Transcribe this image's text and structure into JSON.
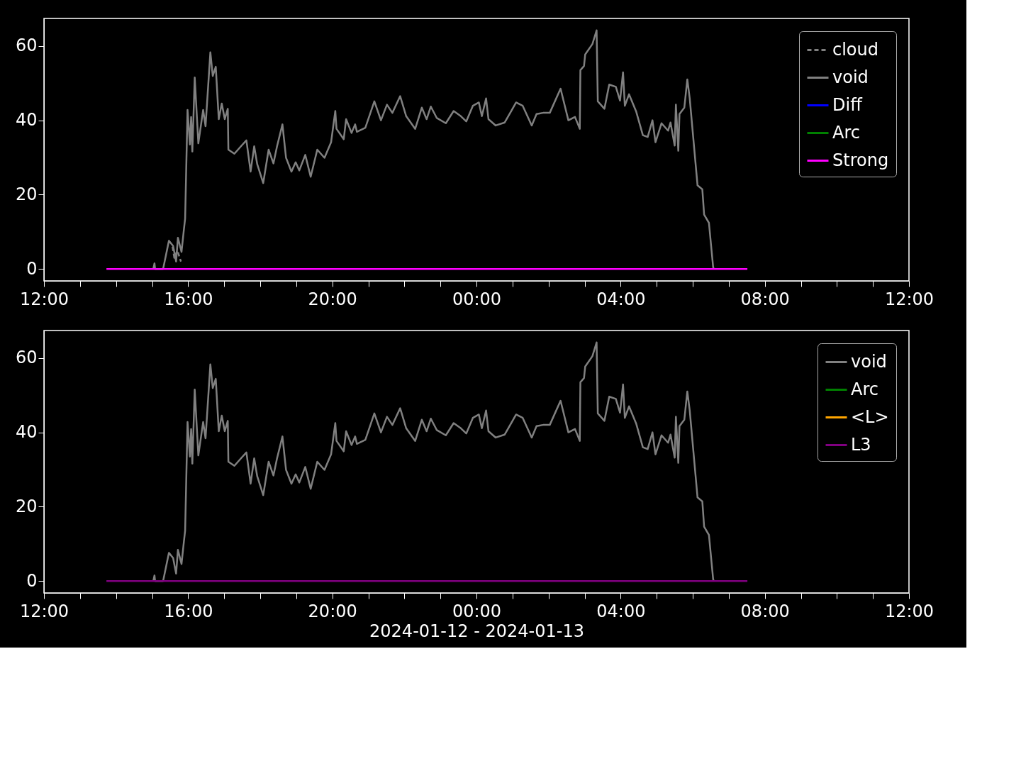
{
  "chart_data": [
    {
      "type": "line",
      "xlim": [
        "2024-01-12T12:00",
        "2024-01-13T12:00"
      ],
      "ylim": [
        -3.2,
        67.4
      ],
      "yticks": [
        0,
        20,
        40,
        60
      ],
      "xticks": [
        {
          "value": "2024-01-12T12:00",
          "label": "12:00"
        },
        {
          "value": "2024-01-12T13:00",
          "label": null
        },
        {
          "value": "2024-01-12T14:00",
          "label": null
        },
        {
          "value": "2024-01-12T15:00",
          "label": null
        },
        {
          "value": "2024-01-12T16:00",
          "label": "16:00"
        },
        {
          "value": "2024-01-12T17:00",
          "label": null
        },
        {
          "value": "2024-01-12T18:00",
          "label": null
        },
        {
          "value": "2024-01-12T19:00",
          "label": null
        },
        {
          "value": "2024-01-12T20:00",
          "label": "20:00"
        },
        {
          "value": "2024-01-12T21:00",
          "label": null
        },
        {
          "value": "2024-01-12T22:00",
          "label": null
        },
        {
          "value": "2024-01-12T23:00",
          "label": null
        },
        {
          "value": "2024-01-13T00:00",
          "label": "00:00"
        },
        {
          "value": "2024-01-13T01:00",
          "label": null
        },
        {
          "value": "2024-01-13T02:00",
          "label": null
        },
        {
          "value": "2024-01-13T03:00",
          "label": null
        },
        {
          "value": "2024-01-13T04:00",
          "label": "04:00"
        },
        {
          "value": "2024-01-13T05:00",
          "label": null
        },
        {
          "value": "2024-01-13T06:00",
          "label": null
        },
        {
          "value": "2024-01-13T07:00",
          "label": null
        },
        {
          "value": "2024-01-13T08:00",
          "label": "08:00"
        },
        {
          "value": "2024-01-13T09:00",
          "label": null
        },
        {
          "value": "2024-01-13T10:00",
          "label": null
        },
        {
          "value": "2024-01-13T11:00",
          "label": null
        },
        {
          "value": "2024-01-13T12:00",
          "label": "12:00"
        }
      ],
      "legend": "top right",
      "grid": false,
      "series": [
        {
          "name": "cloud",
          "color": "#808080",
          "line_style": "dashed",
          "x": [
            "2024-01-12T15:34",
            "2024-01-12T15:37",
            "2024-01-12T15:42",
            "2024-01-12T15:48"
          ],
          "values": [
            6,
            3,
            5,
            2
          ]
        },
        {
          "name": "void",
          "color": "#808080",
          "x": [
            "2024-01-12T15:02",
            "2024-01-12T15:04",
            "2024-01-12T15:05",
            "2024-01-12T15:18",
            "2024-01-12T15:19",
            "2024-01-12T15:28",
            "2024-01-12T15:35",
            "2024-01-12T15:40",
            "2024-01-12T15:43",
            "2024-01-12T15:49",
            "2024-01-12T15:53",
            "2024-01-12T15:55",
            "2024-01-12T15:59",
            "2024-01-12T16:03",
            "2024-01-12T16:05",
            "2024-01-12T16:07",
            "2024-01-12T16:11",
            "2024-01-12T16:17",
            "2024-01-12T16:25",
            "2024-01-12T16:29",
            "2024-01-12T16:37",
            "2024-01-12T16:41",
            "2024-01-12T16:46",
            "2024-01-12T16:51",
            "2024-01-12T16:56",
            "2024-01-12T17:01",
            "2024-01-12T17:06",
            "2024-01-12T17:07",
            "2024-01-12T17:17",
            "2024-01-12T17:29",
            "2024-01-12T17:37",
            "2024-01-12T17:44",
            "2024-01-12T17:50",
            "2024-01-12T17:55",
            "2024-01-12T18:05",
            "2024-01-12T18:14",
            "2024-01-12T18:22",
            "2024-01-12T18:28",
            "2024-01-12T18:37",
            "2024-01-12T18:43",
            "2024-01-12T18:52",
            "2024-01-12T18:59",
            "2024-01-12T19:05",
            "2024-01-12T19:15",
            "2024-01-12T19:24",
            "2024-01-12T19:35",
            "2024-01-12T19:47",
            "2024-01-12T19:58",
            "2024-01-12T20:05",
            "2024-01-12T20:07",
            "2024-01-12T20:19",
            "2024-01-12T20:23",
            "2024-01-12T20:32",
            "2024-01-12T20:38",
            "2024-01-12T20:41",
            "2024-01-12T20:55",
            "2024-01-12T21:10",
            "2024-01-12T21:21",
            "2024-01-12T21:31",
            "2024-01-12T21:40",
            "2024-01-12T21:53",
            "2024-01-12T22:03",
            "2024-01-12T22:18",
            "2024-01-12T22:29",
            "2024-01-12T22:37",
            "2024-01-12T22:44",
            "2024-01-12T22:54",
            "2024-01-12T23:09",
            "2024-01-12T23:22",
            "2024-01-12T23:34",
            "2024-01-12T23:43",
            "2024-01-12T23:54",
            "2024-01-13T00:04",
            "2024-01-13T00:09",
            "2024-01-13T00:16",
            "2024-01-13T00:20",
            "2024-01-13T00:32",
            "2024-01-13T00:47",
            "2024-01-13T00:58",
            "2024-01-13T01:06",
            "2024-01-13T01:17",
            "2024-01-13T01:32",
            "2024-01-13T01:40",
            "2024-01-13T01:51",
            "2024-01-13T02:02",
            "2024-01-13T02:20",
            "2024-01-13T02:33",
            "2024-01-13T02:44",
            "2024-01-13T02:52",
            "2024-01-13T02:53",
            "2024-01-13T02:59",
            "2024-01-13T03:01",
            "2024-01-13T03:13",
            "2024-01-13T03:20",
            "2024-01-13T03:22",
            "2024-01-13T03:33",
            "2024-01-13T03:41",
            "2024-01-13T03:52",
            "2024-01-13T03:59",
            "2024-01-13T04:04",
            "2024-01-13T04:07",
            "2024-01-13T04:14",
            "2024-01-13T04:26",
            "2024-01-13T04:37",
            "2024-01-13T04:45",
            "2024-01-13T04:53",
            "2024-01-13T04:58",
            "2024-01-13T05:08",
            "2024-01-13T05:19",
            "2024-01-13T05:23",
            "2024-01-13T05:30",
            "2024-01-13T05:32",
            "2024-01-13T05:36",
            "2024-01-13T05:38",
            "2024-01-13T05:46",
            "2024-01-13T05:51",
            "2024-01-13T05:55",
            "2024-01-13T06:08",
            "2024-01-13T06:16",
            "2024-01-13T06:19",
            "2024-01-13T06:27",
            "2024-01-13T06:34",
            "2024-01-13T06:35"
          ],
          "values": [
            0,
            1.5,
            0,
            0,
            0.5,
            7.6,
            6.2,
            2,
            8.4,
            4.6,
            10.7,
            13.5,
            42.8,
            33.5,
            40.9,
            31.6,
            51.5,
            33.8,
            42.8,
            38.4,
            58.3,
            51.9,
            54.4,
            40.3,
            44.5,
            40.3,
            43.1,
            32.1,
            31,
            33.2,
            34.6,
            26.2,
            33,
            28.2,
            23.1,
            32.1,
            28.4,
            33,
            38.9,
            29.9,
            26.2,
            28.7,
            26.5,
            30.7,
            24.8,
            32.1,
            29.9,
            34.1,
            42.5,
            37.7,
            34.9,
            40.3,
            36.6,
            38.9,
            36.9,
            38,
            45.1,
            40,
            44.2,
            42,
            46.5,
            41.1,
            37.7,
            43.4,
            40.3,
            43.7,
            40.6,
            39.2,
            42.5,
            41.1,
            39.7,
            43.9,
            44.8,
            41.1,
            45.9,
            40.3,
            38.6,
            39.4,
            42.5,
            44.8,
            43.9,
            38.6,
            41.7,
            42,
            42,
            48.5,
            40,
            40.9,
            37.7,
            53.5,
            54.6,
            57.7,
            60.5,
            64.2,
            45.1,
            43.1,
            49.6,
            49,
            45.3,
            52.9,
            43.9,
            47,
            42.3,
            36,
            35.5,
            40,
            34.1,
            39.2,
            37.2,
            39.4,
            33.2,
            44.2,
            31.8,
            41.7,
            43.4,
            51,
            45.9,
            22.5,
            21.4,
            14.6,
            12.4,
            0.5,
            0
          ]
        },
        {
          "name": "Diff",
          "color": "#0000ff"
        },
        {
          "name": "Arc",
          "color": "#008000"
        },
        {
          "name": "Strong",
          "color": "#ff00ff",
          "x": [
            "2024-01-12T13:44",
            "2024-01-13T07:31"
          ],
          "values": [
            0,
            0
          ]
        }
      ]
    },
    {
      "type": "line",
      "xlim": [
        "2024-01-12T12:00",
        "2024-01-13T12:00"
      ],
      "ylim": [
        -3.2,
        67.4
      ],
      "yticks": [
        0,
        20,
        40,
        60
      ],
      "xlabel": "2024-01-12 - 2024-01-13",
      "xticks": [
        {
          "value": "2024-01-12T12:00",
          "label": "12:00"
        },
        {
          "value": "2024-01-12T13:00",
          "label": null
        },
        {
          "value": "2024-01-12T14:00",
          "label": null
        },
        {
          "value": "2024-01-12T15:00",
          "label": null
        },
        {
          "value": "2024-01-12T16:00",
          "label": "16:00"
        },
        {
          "value": "2024-01-12T17:00",
          "label": null
        },
        {
          "value": "2024-01-12T18:00",
          "label": null
        },
        {
          "value": "2024-01-12T19:00",
          "label": null
        },
        {
          "value": "2024-01-12T20:00",
          "label": "20:00"
        },
        {
          "value": "2024-01-12T21:00",
          "label": null
        },
        {
          "value": "2024-01-12T22:00",
          "label": null
        },
        {
          "value": "2024-01-12T23:00",
          "label": null
        },
        {
          "value": "2024-01-13T00:00",
          "label": "00:00"
        },
        {
          "value": "2024-01-13T01:00",
          "label": null
        },
        {
          "value": "2024-01-13T02:00",
          "label": null
        },
        {
          "value": "2024-01-13T03:00",
          "label": null
        },
        {
          "value": "2024-01-13T04:00",
          "label": "04:00"
        },
        {
          "value": "2024-01-13T05:00",
          "label": null
        },
        {
          "value": "2024-01-13T06:00",
          "label": null
        },
        {
          "value": "2024-01-13T07:00",
          "label": null
        },
        {
          "value": "2024-01-13T08:00",
          "label": "08:00"
        },
        {
          "value": "2024-01-13T09:00",
          "label": null
        },
        {
          "value": "2024-01-13T10:00",
          "label": null
        },
        {
          "value": "2024-01-13T11:00",
          "label": null
        },
        {
          "value": "2024-01-13T12:00",
          "label": "12:00"
        }
      ],
      "legend": "top right",
      "grid": false,
      "series": [
        {
          "name": "void",
          "color": "#808080",
          "x": [
            "2024-01-12T15:02",
            "2024-01-12T15:04",
            "2024-01-12T15:05",
            "2024-01-12T15:18",
            "2024-01-12T15:19",
            "2024-01-12T15:28",
            "2024-01-12T15:35",
            "2024-01-12T15:40",
            "2024-01-12T15:43",
            "2024-01-12T15:49",
            "2024-01-12T15:53",
            "2024-01-12T15:55",
            "2024-01-12T15:59",
            "2024-01-12T16:03",
            "2024-01-12T16:05",
            "2024-01-12T16:07",
            "2024-01-12T16:11",
            "2024-01-12T16:17",
            "2024-01-12T16:25",
            "2024-01-12T16:29",
            "2024-01-12T16:37",
            "2024-01-12T16:41",
            "2024-01-12T16:46",
            "2024-01-12T16:51",
            "2024-01-12T16:56",
            "2024-01-12T17:01",
            "2024-01-12T17:06",
            "2024-01-12T17:07",
            "2024-01-12T17:17",
            "2024-01-12T17:29",
            "2024-01-12T17:37",
            "2024-01-12T17:44",
            "2024-01-12T17:50",
            "2024-01-12T17:55",
            "2024-01-12T18:05",
            "2024-01-12T18:14",
            "2024-01-12T18:22",
            "2024-01-12T18:28",
            "2024-01-12T18:37",
            "2024-01-12T18:43",
            "2024-01-12T18:52",
            "2024-01-12T18:59",
            "2024-01-12T19:05",
            "2024-01-12T19:15",
            "2024-01-12T19:24",
            "2024-01-12T19:35",
            "2024-01-12T19:47",
            "2024-01-12T19:58",
            "2024-01-12T20:05",
            "2024-01-12T20:07",
            "2024-01-12T20:19",
            "2024-01-12T20:23",
            "2024-01-12T20:32",
            "2024-01-12T20:38",
            "2024-01-12T20:41",
            "2024-01-12T20:55",
            "2024-01-12T21:10",
            "2024-01-12T21:21",
            "2024-01-12T21:31",
            "2024-01-12T21:40",
            "2024-01-12T21:53",
            "2024-01-12T22:03",
            "2024-01-12T22:18",
            "2024-01-12T22:29",
            "2024-01-12T22:37",
            "2024-01-12T22:44",
            "2024-01-12T22:54",
            "2024-01-12T23:09",
            "2024-01-12T23:22",
            "2024-01-12T23:34",
            "2024-01-12T23:43",
            "2024-01-12T23:54",
            "2024-01-13T00:04",
            "2024-01-13T00:09",
            "2024-01-13T00:16",
            "2024-01-13T00:20",
            "2024-01-13T00:32",
            "2024-01-13T00:47",
            "2024-01-13T00:58",
            "2024-01-13T01:06",
            "2024-01-13T01:17",
            "2024-01-13T01:32",
            "2024-01-13T01:40",
            "2024-01-13T01:51",
            "2024-01-13T02:02",
            "2024-01-13T02:20",
            "2024-01-13T02:33",
            "2024-01-13T02:44",
            "2024-01-13T02:52",
            "2024-01-13T02:53",
            "2024-01-13T02:59",
            "2024-01-13T03:01",
            "2024-01-13T03:13",
            "2024-01-13T03:20",
            "2024-01-13T03:22",
            "2024-01-13T03:33",
            "2024-01-13T03:41",
            "2024-01-13T03:52",
            "2024-01-13T03:59",
            "2024-01-13T04:04",
            "2024-01-13T04:07",
            "2024-01-13T04:14",
            "2024-01-13T04:26",
            "2024-01-13T04:37",
            "2024-01-13T04:45",
            "2024-01-13T04:53",
            "2024-01-13T04:58",
            "2024-01-13T05:08",
            "2024-01-13T05:19",
            "2024-01-13T05:23",
            "2024-01-13T05:30",
            "2024-01-13T05:32",
            "2024-01-13T05:36",
            "2024-01-13T05:38",
            "2024-01-13T05:46",
            "2024-01-13T05:51",
            "2024-01-13T05:55",
            "2024-01-13T06:08",
            "2024-01-13T06:16",
            "2024-01-13T06:19",
            "2024-01-13T06:27",
            "2024-01-13T06:34",
            "2024-01-13T06:35"
          ],
          "values": [
            0,
            1.5,
            0,
            0,
            0.5,
            7.6,
            6.2,
            2,
            8.4,
            4.6,
            10.7,
            13.5,
            42.8,
            33.5,
            40.9,
            31.6,
            51.5,
            33.8,
            42.8,
            38.4,
            58.3,
            51.9,
            54.4,
            40.3,
            44.5,
            40.3,
            43.1,
            32.1,
            31,
            33.2,
            34.6,
            26.2,
            33,
            28.2,
            23.1,
            32.1,
            28.4,
            33,
            38.9,
            29.9,
            26.2,
            28.7,
            26.5,
            30.7,
            24.8,
            32.1,
            29.9,
            34.1,
            42.5,
            37.7,
            34.9,
            40.3,
            36.6,
            38.9,
            36.9,
            38,
            45.1,
            40,
            44.2,
            42,
            46.5,
            41.1,
            37.7,
            43.4,
            40.3,
            43.7,
            40.6,
            39.2,
            42.5,
            41.1,
            39.7,
            43.9,
            44.8,
            41.1,
            45.9,
            40.3,
            38.6,
            39.4,
            42.5,
            44.8,
            43.9,
            38.6,
            41.7,
            42,
            42,
            48.5,
            40,
            40.9,
            37.7,
            53.5,
            54.6,
            57.7,
            60.5,
            64.2,
            45.1,
            43.1,
            49.6,
            49,
            45.3,
            52.9,
            43.9,
            47,
            42.3,
            36,
            35.5,
            40,
            34.1,
            39.2,
            37.2,
            39.4,
            33.2,
            44.2,
            31.8,
            41.7,
            43.4,
            51,
            45.9,
            22.5,
            21.4,
            14.6,
            12.4,
            0.5,
            0
          ]
        },
        {
          "name": "Arc",
          "color": "#008000"
        },
        {
          "name": "<L>",
          "color": "#ffa500"
        },
        {
          "name": "L3",
          "color": "#800080",
          "x": [
            "2024-01-12T13:44",
            "2024-01-13T07:31"
          ],
          "values": [
            0,
            0
          ]
        }
      ]
    }
  ]
}
